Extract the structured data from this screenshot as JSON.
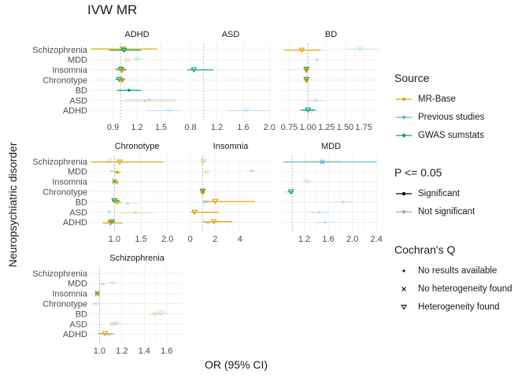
{
  "title": "IVW MR",
  "xlabel": "OR (95% CI)",
  "ylabel": "Neuropsychiatric disorder",
  "legend": {
    "source_title": "Source",
    "source_items": [
      {
        "label": "MR-Base",
        "color": "#E69F00"
      },
      {
        "label": "Previous studies",
        "color": "#56B4E9"
      },
      {
        "label": "GWAS sumstats",
        "color": "#009E73"
      }
    ],
    "p_title": "P <= 0.05",
    "p_items": [
      {
        "label": "Significant",
        "style": "solid"
      },
      {
        "label": "Not significant",
        "style": "faded"
      }
    ],
    "q_title": "Cochran's Q",
    "q_items": [
      {
        "label": "No results available",
        "shape": "dot"
      },
      {
        "label": "No heterogeneity found",
        "shape": "cross"
      },
      {
        "label": "Heterogeneity found",
        "shape": "triangle"
      }
    ]
  },
  "chart_data": {
    "type": "forest",
    "categories": [
      "Schizophrenia",
      "MDD",
      "Insomnia",
      "Chronotype",
      "BD",
      "ASD",
      "ADHD"
    ],
    "colors": {
      "MR-Base": "#E69F00",
      "Previous studies": "#56B4E9",
      "GWAS sumstats": "#009E73"
    },
    "panels": [
      {
        "name": "ADHD",
        "xlim": [
          0.62,
          1.78
        ],
        "ticks": [
          0.9,
          1.2,
          1.5
        ],
        "ticklabels": [
          "0.9",
          "1.2",
          "1.5"
        ],
        "estimates": [
          {
            "cat": "Schizophrenia",
            "src": "MR-Base",
            "or": 1.02,
            "lo": 0.6,
            "hi": 1.45,
            "sig": true,
            "q": "triangle"
          },
          {
            "cat": "Schizophrenia",
            "src": "GWAS sumstats",
            "or": 1.04,
            "lo": 0.85,
            "hi": 1.25,
            "sig": true,
            "q": "triangle"
          },
          {
            "cat": "MDD",
            "src": "Previous studies",
            "or": 1.2,
            "lo": 1.14,
            "hi": 1.28,
            "sig": false,
            "q": "triangle"
          },
          {
            "cat": "MDD",
            "src": "MR-Base",
            "or": 1.08,
            "lo": 1.04,
            "hi": 1.12,
            "sig": false,
            "q": "triangle"
          },
          {
            "cat": "Insomnia",
            "src": "GWAS sumstats",
            "or": 1.0,
            "lo": 0.93,
            "hi": 1.07,
            "sig": true,
            "q": "triangle"
          },
          {
            "cat": "Insomnia",
            "src": "MR-Base",
            "or": 1.01,
            "lo": 0.97,
            "hi": 1.05,
            "sig": true,
            "q": "triangle"
          },
          {
            "cat": "Chronotype",
            "src": "GWAS sumstats",
            "or": 0.98,
            "lo": 0.93,
            "hi": 1.05,
            "sig": true,
            "q": "triangle"
          },
          {
            "cat": "Chronotype",
            "src": "MR-Base",
            "or": 1.01,
            "lo": 0.98,
            "hi": 1.04,
            "sig": true,
            "q": "triangle"
          },
          {
            "cat": "BD",
            "src": "GWAS sumstats",
            "or": 1.1,
            "lo": 0.95,
            "hi": 1.25,
            "sig": true,
            "q": "dot"
          },
          {
            "cat": "ASD",
            "src": "Previous studies",
            "or": 1.35,
            "lo": 1.05,
            "hi": 1.68,
            "sig": false,
            "q": "dot"
          },
          {
            "cat": "ASD",
            "src": "MR-Base",
            "or": 1.3,
            "lo": 1.0,
            "hi": 1.68,
            "sig": false,
            "q": "dot"
          },
          {
            "cat": "ADHD",
            "src": "Previous studies",
            "or": 1.6,
            "lo": 1.33,
            "hi": 1.75,
            "sig": false,
            "q": "triangle"
          }
        ]
      },
      {
        "name": "ASD",
        "xlim": [
          0.74,
          2.08
        ],
        "ticks": [
          0.8,
          1.2,
          1.6,
          2.0
        ],
        "ticklabels": [
          "0.8",
          "1.2",
          "1.6",
          "2.0"
        ],
        "estimates": [
          {
            "cat": "Insomnia",
            "src": "GWAS sumstats",
            "or": 0.85,
            "lo": 0.75,
            "hi": 1.15,
            "sig": true,
            "q": "triangle"
          },
          {
            "cat": "ADHD",
            "src": "Previous studies",
            "or": 1.65,
            "lo": 1.35,
            "hi": 2.0,
            "sig": false,
            "q": "triangle"
          }
        ]
      },
      {
        "name": "BD",
        "xlim": [
          0.66,
          1.96
        ],
        "ticks": [
          0.75,
          1.0,
          1.25,
          1.5,
          1.75
        ],
        "ticklabels": [
          "0.75",
          "1.00",
          "1.25",
          "1.50",
          "1.75"
        ],
        "estimates": [
          {
            "cat": "Schizophrenia",
            "src": "Previous studies",
            "or": 1.7,
            "lo": 1.5,
            "hi": 1.93,
            "sig": false,
            "q": "triangle"
          },
          {
            "cat": "Schizophrenia",
            "src": "MR-Base",
            "or": 0.92,
            "lo": 0.68,
            "hi": 1.17,
            "sig": true,
            "q": "triangle"
          },
          {
            "cat": "MDD",
            "src": "Previous studies",
            "or": 1.12,
            "lo": 1.09,
            "hi": 1.15,
            "sig": false,
            "q": "dot"
          },
          {
            "cat": "Insomnia",
            "src": "GWAS sumstats",
            "or": 0.98,
            "lo": 0.95,
            "hi": 1.01,
            "sig": true,
            "q": "triangle"
          },
          {
            "cat": "Insomnia",
            "src": "MR-Base",
            "or": 0.98,
            "lo": 0.97,
            "hi": 1.0,
            "sig": true,
            "q": "triangle"
          },
          {
            "cat": "Chronotype",
            "src": "GWAS sumstats",
            "or": 0.98,
            "lo": 0.95,
            "hi": 1.01,
            "sig": true,
            "q": "triangle"
          },
          {
            "cat": "Chronotype",
            "src": "MR-Base",
            "or": 0.98,
            "lo": 0.96,
            "hi": 1.01,
            "sig": true,
            "q": "triangle"
          },
          {
            "cat": "ASD",
            "src": "Previous studies",
            "or": 1.1,
            "lo": 1.0,
            "hi": 1.2,
            "sig": false,
            "q": "triangle"
          },
          {
            "cat": "ADHD",
            "src": "GWAS sumstats",
            "or": 1.0,
            "lo": 0.9,
            "hi": 1.1,
            "sig": true,
            "q": "triangle"
          },
          {
            "cat": "ADHD",
            "src": "Previous studies",
            "or": 1.05,
            "lo": 0.95,
            "hi": 1.15,
            "sig": false,
            "q": "triangle"
          }
        ]
      },
      {
        "name": "Chronotype",
        "xlim": [
          0.55,
          2.3
        ],
        "ticks": [
          1.0,
          1.5,
          2.0
        ],
        "ticklabels": [
          "1.0",
          "1.5",
          "2.0"
        ],
        "estimates": [
          {
            "cat": "Schizophrenia",
            "src": "Previous studies",
            "or": 0.9,
            "lo": 0.85,
            "hi": 0.95,
            "sig": false,
            "q": "triangle"
          },
          {
            "cat": "Schizophrenia",
            "src": "MR-Base",
            "or": 1.1,
            "lo": 0.56,
            "hi": 1.92,
            "sig": true,
            "q": "triangle"
          },
          {
            "cat": "MDD",
            "src": "Previous studies",
            "or": 0.95,
            "lo": 0.9,
            "hi": 1.0,
            "sig": false,
            "q": "dot"
          },
          {
            "cat": "MDD",
            "src": "MR-Base",
            "or": 1.05,
            "lo": 1.0,
            "hi": 1.12,
            "sig": true,
            "q": "dot"
          },
          {
            "cat": "Insomnia",
            "src": "GWAS sumstats",
            "or": 1.0,
            "lo": 0.97,
            "hi": 1.03,
            "sig": true,
            "q": "cross"
          },
          {
            "cat": "Insomnia",
            "src": "MR-Base",
            "or": 1.03,
            "lo": 0.99,
            "hi": 1.08,
            "sig": true,
            "q": "cross"
          },
          {
            "cat": "BD",
            "src": "GWAS sumstats",
            "or": 1.0,
            "lo": 0.95,
            "hi": 1.1,
            "sig": true,
            "q": "triangle"
          },
          {
            "cat": "BD",
            "src": "MR-Base",
            "or": 1.05,
            "lo": 0.98,
            "hi": 1.12,
            "sig": true,
            "q": "triangle"
          },
          {
            "cat": "BD",
            "src": "Previous studies",
            "or": 1.25,
            "lo": 1.05,
            "hi": 1.45,
            "sig": false,
            "q": "dot"
          },
          {
            "cat": "ASD",
            "src": "Previous studies",
            "or": 0.9,
            "lo": 0.85,
            "hi": 0.97,
            "sig": false,
            "q": "dot"
          },
          {
            "cat": "ASD",
            "src": "MR-Base",
            "or": 1.4,
            "lo": 1.1,
            "hi": 1.75,
            "sig": false,
            "q": "dot"
          },
          {
            "cat": "ADHD",
            "src": "GWAS sumstats",
            "or": 0.95,
            "lo": 0.9,
            "hi": 1.0,
            "sig": true,
            "q": "triangle"
          },
          {
            "cat": "ADHD",
            "src": "MR-Base",
            "or": 0.92,
            "lo": 0.78,
            "hi": 1.15,
            "sig": true,
            "q": "triangle"
          }
        ]
      },
      {
        "name": "Insomnia",
        "xlim": [
          -0.3,
          6.8
        ],
        "ticks": [
          0,
          2,
          4
        ],
        "ticklabels": [
          "0",
          "2",
          "4"
        ],
        "estimates": [
          {
            "cat": "Schizophrenia",
            "src": "Previous studies",
            "or": 1.1,
            "lo": 0.9,
            "hi": 1.3,
            "sig": false,
            "q": "triangle"
          },
          {
            "cat": "Schizophrenia",
            "src": "MR-Base",
            "or": 1.0,
            "lo": 0.85,
            "hi": 1.15,
            "sig": false,
            "q": "triangle"
          },
          {
            "cat": "MDD",
            "src": "Previous studies",
            "or": 4.9,
            "lo": 4.5,
            "hi": 5.3,
            "sig": false,
            "q": "dot"
          },
          {
            "cat": "MDD",
            "src": "MR-Base",
            "or": 1.3,
            "lo": 1.1,
            "hi": 1.5,
            "sig": false,
            "q": "triangle"
          },
          {
            "cat": "Chronotype",
            "src": "GWAS sumstats",
            "or": 1.0,
            "lo": 0.9,
            "hi": 1.1,
            "sig": true,
            "q": "triangle"
          },
          {
            "cat": "Chronotype",
            "src": "MR-Base",
            "or": 1.0,
            "lo": 0.8,
            "hi": 1.2,
            "sig": true,
            "q": "triangle"
          },
          {
            "cat": "BD",
            "src": "MR-Base",
            "or": 2.0,
            "lo": 1.0,
            "hi": 5.2,
            "sig": true,
            "q": "triangle"
          },
          {
            "cat": "BD",
            "src": "Previous studies",
            "or": 1.2,
            "lo": 1.0,
            "hi": 1.5,
            "sig": false,
            "q": "triangle"
          },
          {
            "cat": "ASD",
            "src": "MR-Base",
            "or": 0.35,
            "lo": 0.05,
            "hi": 2.3,
            "sig": true,
            "q": "triangle"
          },
          {
            "cat": "ADHD",
            "src": "MR-Base",
            "or": 1.9,
            "lo": 1.0,
            "hi": 3.4,
            "sig": true,
            "q": "triangle"
          },
          {
            "cat": "ADHD",
            "src": "Previous studies",
            "or": 1.4,
            "lo": 1.2,
            "hi": 1.6,
            "sig": false,
            "q": "dot"
          }
        ]
      },
      {
        "name": "MDD",
        "xlim": [
          0.84,
          2.45
        ],
        "ticks": [
          1.2,
          1.6,
          2.0,
          2.4
        ],
        "ticklabels": [
          "1.2",
          "1.6",
          "2.0",
          "2.4"
        ],
        "estimates": [
          {
            "cat": "Schizophrenia",
            "src": "MR-Base",
            "or": 1.5,
            "lo": 1.2,
            "hi": 1.8,
            "sig": false,
            "q": "triangle"
          },
          {
            "cat": "Schizophrenia",
            "src": "Previous studies",
            "or": 1.5,
            "lo": 0.85,
            "hi": 2.4,
            "sig": true,
            "q": "cross"
          },
          {
            "cat": "Insomnia",
            "src": "Previous studies",
            "or": 1.25,
            "lo": 1.18,
            "hi": 1.33,
            "sig": false,
            "q": "triangle"
          },
          {
            "cat": "Chronotype",
            "src": "GWAS sumstats",
            "or": 0.98,
            "lo": 0.92,
            "hi": 1.02,
            "sig": true,
            "q": "triangle"
          },
          {
            "cat": "BD",
            "src": "Previous studies",
            "or": 1.85,
            "lo": 1.7,
            "hi": 2.0,
            "sig": false,
            "q": "dot"
          },
          {
            "cat": "ASD",
            "src": "Previous studies",
            "or": 1.45,
            "lo": 1.3,
            "hi": 1.6,
            "sig": false,
            "q": "dot"
          },
          {
            "cat": "ADHD",
            "src": "Previous studies",
            "or": 1.55,
            "lo": 1.4,
            "hi": 1.7,
            "sig": false,
            "q": "dot"
          }
        ]
      },
      {
        "name": "Schizophrenia",
        "xlim": [
          0.92,
          1.75
        ],
        "ticks": [
          1.0,
          1.2,
          1.4,
          1.6
        ],
        "ticklabels": [
          "1.0",
          "1.2",
          "1.4",
          "1.6"
        ],
        "estimates": [
          {
            "cat": "MDD",
            "src": "Previous studies",
            "or": 1.12,
            "lo": 1.08,
            "hi": 1.16,
            "sig": false,
            "q": "dot"
          },
          {
            "cat": "MDD",
            "src": "MR-Base",
            "or": 1.03,
            "lo": 1.0,
            "hi": 1.06,
            "sig": false,
            "q": "dot"
          },
          {
            "cat": "Insomnia",
            "src": "GWAS sumstats",
            "or": 0.98,
            "lo": 0.96,
            "hi": 1.0,
            "sig": true,
            "q": "cross"
          },
          {
            "cat": "Insomnia",
            "src": "MR-Base",
            "or": 0.98,
            "lo": 0.97,
            "hi": 0.99,
            "sig": true,
            "q": "cross"
          },
          {
            "cat": "Chronotype",
            "src": "Previous studies",
            "or": 0.97,
            "lo": 0.94,
            "hi": 1.0,
            "sig": false,
            "q": "dot"
          },
          {
            "cat": "BD",
            "src": "Previous studies",
            "or": 1.55,
            "lo": 1.48,
            "hi": 1.62,
            "sig": false,
            "q": "triangle"
          },
          {
            "cat": "BD",
            "src": "MR-Base",
            "or": 1.5,
            "lo": 1.44,
            "hi": 1.56,
            "sig": false,
            "q": "triangle"
          },
          {
            "cat": "ASD",
            "src": "Previous studies",
            "or": 1.15,
            "lo": 1.1,
            "hi": 1.2,
            "sig": false,
            "q": "triangle"
          },
          {
            "cat": "ASD",
            "src": "MR-Base",
            "or": 1.12,
            "lo": 1.08,
            "hi": 1.16,
            "sig": false,
            "q": "triangle"
          },
          {
            "cat": "ADHD",
            "src": "MR-Base",
            "or": 1.05,
            "lo": 0.99,
            "hi": 1.12,
            "sig": true,
            "q": "triangle"
          },
          {
            "cat": "ADHD",
            "src": "Previous studies",
            "or": 1.08,
            "lo": 1.02,
            "hi": 1.14,
            "sig": false,
            "q": "dot"
          }
        ]
      }
    ]
  }
}
